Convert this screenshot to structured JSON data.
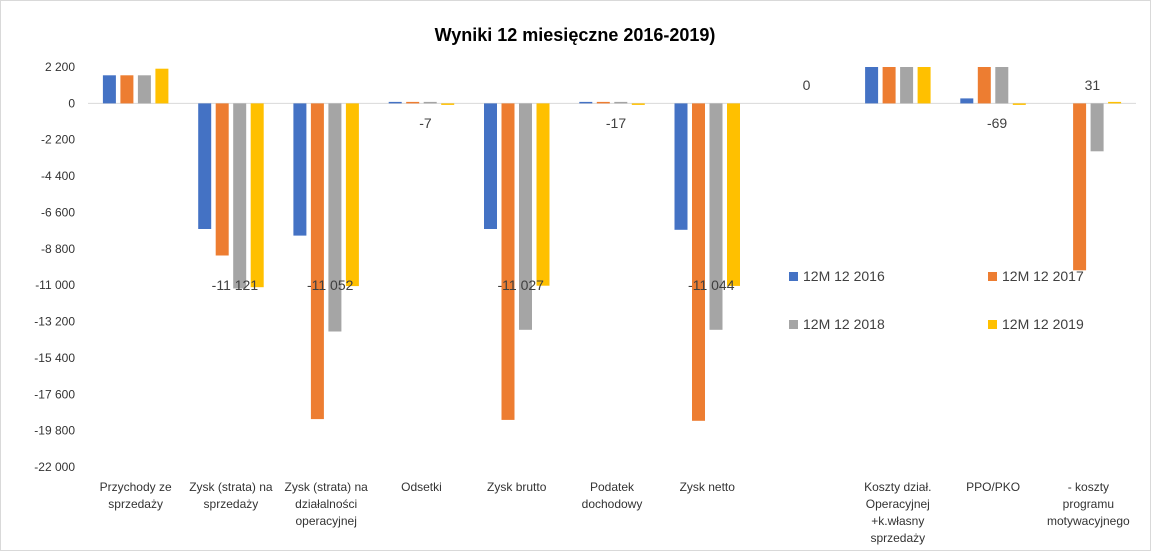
{
  "chart_data": {
    "type": "bar",
    "title": "Wyniki 12 miesięczne 2016-2019)",
    "xlabel": "",
    "ylabel": "",
    "ylim": [
      -22000,
      2200
    ],
    "yticks": [
      2200,
      0,
      -2200,
      -4400,
      -6600,
      -8800,
      -11000,
      -13200,
      -15400,
      -17600,
      -19800,
      -22000
    ],
    "ytick_labels": [
      "2 200",
      "0",
      "-2 200",
      "-4 400",
      "-6 600",
      "-8 800",
      "-11 000",
      "-13 200",
      "-15 400",
      "-17 600",
      "-19 800",
      "-22 000"
    ],
    "categories": [
      [
        "Przychody ze",
        "sprzedaży"
      ],
      [
        "Zysk (strata) na",
        "sprzedaży"
      ],
      [
        "Zysk (strata) na",
        "działalności",
        "operacyjnej"
      ],
      [
        "Odsetki"
      ],
      [
        "Zysk brutto"
      ],
      [
        "Podatek",
        "dochodowy"
      ],
      [
        "Zysk netto"
      ],
      [],
      [
        "Koszty dział.",
        "Operacyjnej",
        "+k.własny",
        "sprzedaży"
      ],
      [
        "PPO/PKO"
      ],
      [
        "- koszty",
        "programu",
        "motywacyjnego"
      ]
    ],
    "series": [
      {
        "name": "12M 12 2016",
        "color": "#4472c4",
        "values": [
          1700,
          -7600,
          -8000,
          0,
          -7600,
          0,
          -7650,
          null,
          2200,
          300,
          null
        ]
      },
      {
        "name": "12M 12 2017",
        "color": "#ed7d31",
        "values": [
          1700,
          -9200,
          -19100,
          0,
          -19150,
          0,
          -19200,
          null,
          2200,
          2200,
          -10100
        ]
      },
      {
        "name": "12M 12 2018",
        "color": "#a5a5a5",
        "values": [
          1700,
          -11200,
          -13800,
          0,
          -13700,
          0,
          -13700,
          null,
          2200,
          2200,
          -2900
        ]
      },
      {
        "name": "12M 12 2019",
        "color": "#ffc000",
        "values": [
          2100,
          -11121,
          -11052,
          -7,
          -11027,
          -17,
          -11044,
          null,
          2200,
          -69,
          31
        ]
      }
    ],
    "data_labels": [
      {
        "text": "-11 121",
        "category": 1,
        "anchor_value": -11000
      },
      {
        "text": "-11 052",
        "category": 2,
        "anchor_value": -11000
      },
      {
        "text": "-7",
        "category": 3,
        "anchor_value": -1200
      },
      {
        "text": "-11 027",
        "category": 4,
        "anchor_value": -11000
      },
      {
        "text": "-17",
        "category": 5,
        "anchor_value": -1200
      },
      {
        "text": "-11 044",
        "category": 6,
        "anchor_value": -11000
      },
      {
        "text": "0",
        "category": 7,
        "anchor_value": 1100
      },
      {
        "text": "-69",
        "category": 9,
        "anchor_value": -1200
      },
      {
        "text": "31",
        "category": 10,
        "anchor_value": 1100
      }
    ],
    "grid": false,
    "legend_position": "right"
  }
}
